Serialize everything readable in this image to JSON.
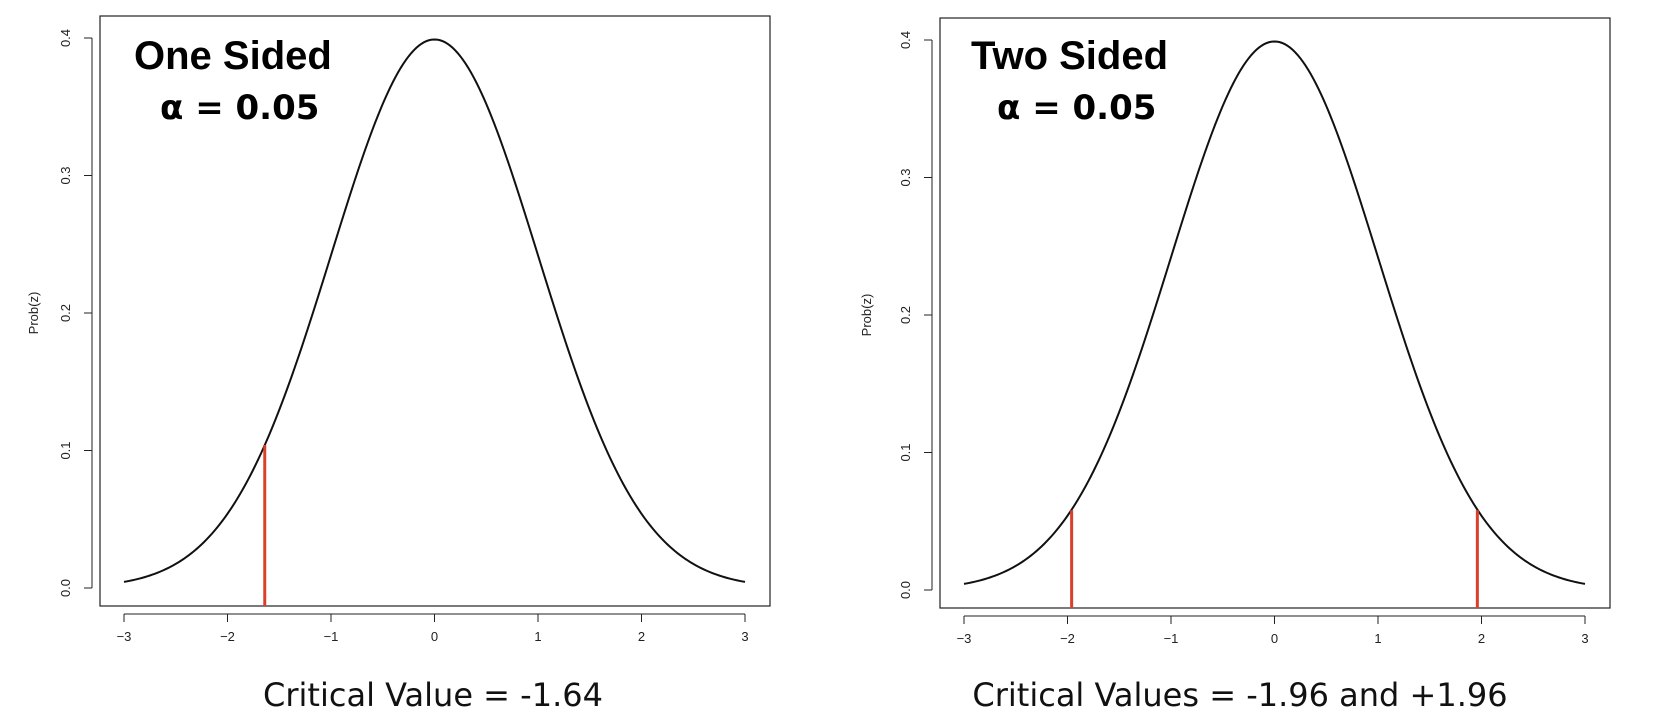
{
  "colors": {
    "curve": "#111111",
    "critical_line": "#d9402b",
    "axes": "#222222",
    "background": "#ffffff"
  },
  "chart_data": [
    {
      "type": "line",
      "title": "One Sided",
      "subtitle": "α = 0.05",
      "caption": "Critical Value = -1.64",
      "xlabel": "",
      "ylabel": "Prob(z)",
      "xlim": [
        -3,
        3
      ],
      "ylim": [
        0,
        0.4
      ],
      "x_ticks": [
        -3,
        -2,
        -1,
        0,
        1,
        2,
        3
      ],
      "x_tick_labels": [
        "−3",
        "−2",
        "−1",
        "0",
        "1",
        "2",
        "3"
      ],
      "y_ticks": [
        0.0,
        0.1,
        0.2,
        0.3,
        0.4
      ],
      "y_tick_labels": [
        "0.0",
        "0.1",
        "0.2",
        "0.3",
        "0.4"
      ],
      "grid": false,
      "series": [
        {
          "x": [
            -3,
            -2.5,
            -2,
            -1.5,
            -1,
            -0.5,
            0,
            0.5,
            1,
            1.5,
            2,
            2.5,
            3
          ],
          "y": [
            0.0044,
            0.0175,
            0.054,
            0.1295,
            0.242,
            0.3521,
            0.3989,
            0.3521,
            0.242,
            0.1295,
            0.054,
            0.0175,
            0.0044
          ]
        }
      ],
      "critical_lines": [
        {
          "x": -1.64,
          "y_top": 0.104
        }
      ]
    },
    {
      "type": "line",
      "title": "Two Sided",
      "subtitle": "α = 0.05",
      "caption": "Critical Values = -1.96 and +1.96",
      "xlabel": "",
      "ylabel": "Prob(z)",
      "xlim": [
        -3,
        3
      ],
      "ylim": [
        0,
        0.4
      ],
      "x_ticks": [
        -3,
        -2,
        -1,
        0,
        1,
        2,
        3
      ],
      "x_tick_labels": [
        "−3",
        "−2",
        "−1",
        "0",
        "1",
        "2",
        "3"
      ],
      "y_ticks": [
        0.0,
        0.1,
        0.2,
        0.3,
        0.4
      ],
      "y_tick_labels": [
        "0.0",
        "0.1",
        "0.2",
        "0.3",
        "0.4"
      ],
      "grid": false,
      "series": [
        {
          "x": [
            -3,
            -2.5,
            -2,
            -1.5,
            -1,
            -0.5,
            0,
            0.5,
            1,
            1.5,
            2,
            2.5,
            3
          ],
          "y": [
            0.0044,
            0.0175,
            0.054,
            0.1295,
            0.242,
            0.3521,
            0.3989,
            0.3521,
            0.242,
            0.1295,
            0.054,
            0.0175,
            0.0044
          ]
        }
      ],
      "critical_lines": [
        {
          "x": -1.96,
          "y_top": 0.058
        },
        {
          "x": 1.96,
          "y_top": 0.058
        }
      ]
    }
  ]
}
